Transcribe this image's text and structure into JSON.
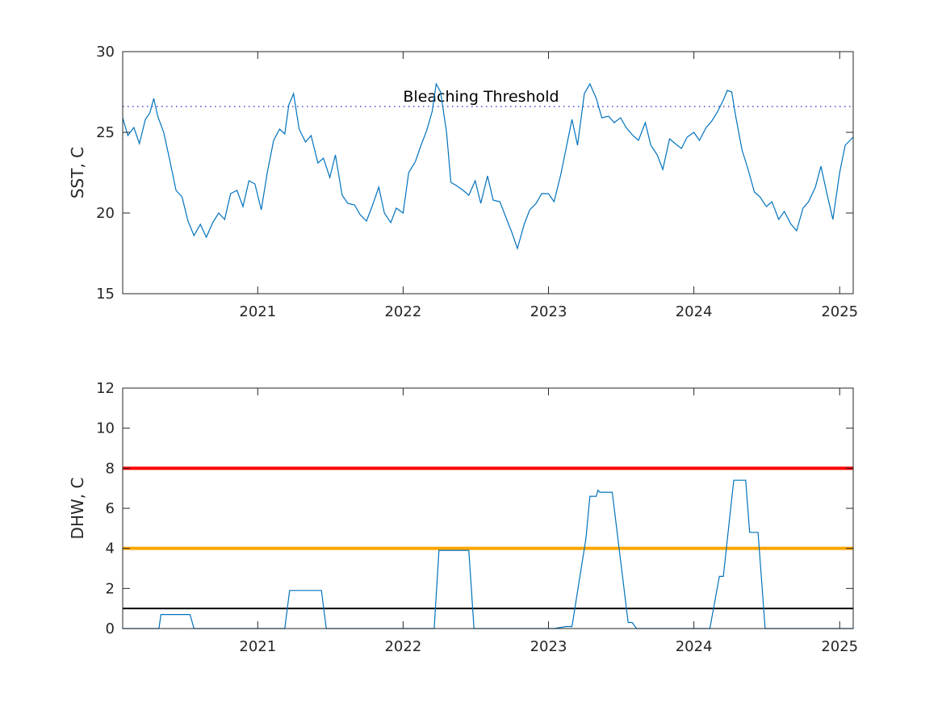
{
  "chart_data": [
    {
      "type": "line",
      "ylabel": "SST, C",
      "xlim": [
        "2020-01-28",
        "2025-02-04"
      ],
      "ylim": [
        15,
        30
      ],
      "x_ticks": [
        2021,
        2022,
        2023,
        2024,
        2025
      ],
      "y_ticks": [
        15,
        20,
        25,
        30
      ],
      "grid": false,
      "series_color": "#0072bd",
      "threshold": {
        "label": "Bleaching Threshold",
        "value": 26.6,
        "style": "dotted",
        "color": "#4d4dc8"
      },
      "series": [
        {
          "x": [
            "2020-01-28",
            "2020-02-10",
            "2020-02-25",
            "2020-03-10",
            "2020-03-25",
            "2020-04-05",
            "2020-04-15",
            "2020-04-25",
            "2020-05-10",
            "2020-05-25",
            "2020-06-10",
            "2020-06-25",
            "2020-07-10",
            "2020-07-25",
            "2020-08-10",
            "2020-08-25",
            "2020-09-10",
            "2020-09-25",
            "2020-10-10",
            "2020-10-25",
            "2020-11-10",
            "2020-11-25",
            "2020-12-10",
            "2020-12-25",
            "2021-01-10",
            "2021-01-25",
            "2021-02-10",
            "2021-02-25",
            "2021-03-10",
            "2021-03-20",
            "2021-04-01",
            "2021-04-15",
            "2021-05-01",
            "2021-05-15",
            "2021-06-01",
            "2021-06-15",
            "2021-07-01",
            "2021-07-15",
            "2021-08-01",
            "2021-08-15",
            "2021-09-01",
            "2021-09-15",
            "2021-10-01",
            "2021-10-15",
            "2021-11-01",
            "2021-11-15",
            "2021-12-01",
            "2021-12-15",
            "2022-01-01",
            "2022-01-15",
            "2022-02-01",
            "2022-02-15",
            "2022-03-01",
            "2022-03-15",
            "2022-03-25",
            "2022-04-05",
            "2022-04-20",
            "2022-05-01",
            "2022-05-15",
            "2022-06-01",
            "2022-06-15",
            "2022-07-01",
            "2022-07-15",
            "2022-08-01",
            "2022-08-15",
            "2022-09-01",
            "2022-09-15",
            "2022-10-01",
            "2022-10-15",
            "2022-11-01",
            "2022-11-15",
            "2022-12-01",
            "2022-12-15",
            "2023-01-01",
            "2023-01-15",
            "2023-02-01",
            "2023-02-15",
            "2023-03-01",
            "2023-03-15",
            "2023-04-01",
            "2023-04-15",
            "2023-05-01",
            "2023-05-15",
            "2023-06-01",
            "2023-06-15",
            "2023-07-01",
            "2023-07-15",
            "2023-08-01",
            "2023-08-15",
            "2023-09-01",
            "2023-09-15",
            "2023-10-01",
            "2023-10-15",
            "2023-11-01",
            "2023-11-15",
            "2023-12-01",
            "2023-12-15",
            "2024-01-01",
            "2024-01-15",
            "2024-02-01",
            "2024-02-15",
            "2024-03-01",
            "2024-03-15",
            "2024-03-25",
            "2024-04-05",
            "2024-04-15",
            "2024-05-01",
            "2024-05-15",
            "2024-06-01",
            "2024-06-15",
            "2024-07-01",
            "2024-07-15",
            "2024-08-01",
            "2024-08-15",
            "2024-09-01",
            "2024-09-15",
            "2024-10-01",
            "2024-10-15",
            "2024-11-01",
            "2024-11-15",
            "2024-12-01",
            "2024-12-15",
            "2025-01-01",
            "2025-01-15",
            "2025-02-04"
          ],
          "values": [
            25.9,
            24.8,
            25.3,
            24.3,
            25.8,
            26.2,
            27.1,
            26.0,
            25.0,
            23.3,
            21.4,
            21.0,
            19.5,
            18.6,
            19.3,
            18.5,
            19.4,
            20.0,
            19.6,
            21.2,
            21.4,
            20.4,
            22.0,
            21.8,
            20.2,
            22.5,
            24.5,
            25.2,
            24.9,
            26.7,
            27.4,
            25.2,
            24.4,
            24.8,
            23.1,
            23.4,
            22.2,
            23.6,
            21.1,
            20.6,
            20.5,
            19.9,
            19.5,
            20.4,
            21.6,
            20.0,
            19.4,
            20.3,
            20.0,
            22.5,
            23.2,
            24.2,
            25.1,
            26.3,
            28.0,
            27.5,
            25.0,
            21.9,
            21.7,
            21.4,
            21.1,
            22.0,
            20.6,
            22.3,
            20.8,
            20.7,
            19.8,
            18.8,
            17.8,
            19.3,
            20.2,
            20.6,
            21.2,
            21.2,
            20.7,
            22.4,
            24.1,
            25.8,
            24.2,
            27.4,
            28.0,
            27.1,
            25.9,
            26.0,
            25.6,
            25.9,
            25.3,
            24.8,
            24.5,
            25.6,
            24.2,
            23.6,
            22.7,
            24.6,
            24.3,
            24.0,
            24.7,
            25.0,
            24.5,
            25.3,
            25.7,
            26.3,
            27.0,
            27.6,
            27.5,
            26.0,
            23.9,
            22.8,
            21.3,
            21.0,
            20.4,
            20.7,
            19.6,
            20.1,
            19.3,
            18.9,
            20.3,
            20.7,
            21.6,
            22.9,
            21.1,
            19.6,
            22.5,
            24.2,
            24.7
          ]
        }
      ]
    },
    {
      "type": "line",
      "ylabel": "DHW, C",
      "xlim": [
        "2020-01-28",
        "2025-02-04"
      ],
      "ylim": [
        0,
        12
      ],
      "x_ticks": [
        2021,
        2022,
        2023,
        2024,
        2025
      ],
      "y_ticks": [
        0,
        2,
        4,
        6,
        8,
        10,
        12
      ],
      "grid": false,
      "series_color": "#0072bd",
      "reference_lines": [
        {
          "value": 8,
          "color": "#ff0000"
        },
        {
          "value": 4,
          "color": "#ffa500"
        },
        {
          "value": 1,
          "color": "#000000"
        }
      ],
      "series": [
        {
          "x": [
            "2020-01-28",
            "2020-04-28",
            "2020-05-03",
            "2020-07-15",
            "2020-07-25",
            "2021-03-10",
            "2021-03-22",
            "2021-06-10",
            "2021-06-22",
            "2022-03-20",
            "2022-04-01",
            "2022-06-15",
            "2022-06-28",
            "2023-01-15",
            "2023-02-15",
            "2023-03-01",
            "2023-04-05",
            "2023-04-15",
            "2023-05-01",
            "2023-05-05",
            "2023-05-10",
            "2023-06-10",
            "2023-07-20",
            "2023-07-30",
            "2023-08-10",
            "2024-01-20",
            "2024-02-10",
            "2024-02-22",
            "2024-03-05",
            "2024-03-15",
            "2024-04-10",
            "2024-05-10",
            "2024-05-20",
            "2024-06-10",
            "2024-06-28",
            "2025-02-04"
          ],
          "values": [
            0,
            0,
            0.7,
            0.7,
            0,
            0,
            1.9,
            1.9,
            0,
            0,
            3.9,
            3.9,
            0,
            0,
            0.1,
            0.1,
            4.5,
            6.6,
            6.6,
            6.9,
            6.8,
            6.8,
            0.3,
            0.3,
            0,
            0,
            0,
            1.3,
            2.6,
            2.6,
            7.4,
            7.4,
            4.8,
            4.8,
            0,
            0
          ]
        }
      ]
    }
  ]
}
